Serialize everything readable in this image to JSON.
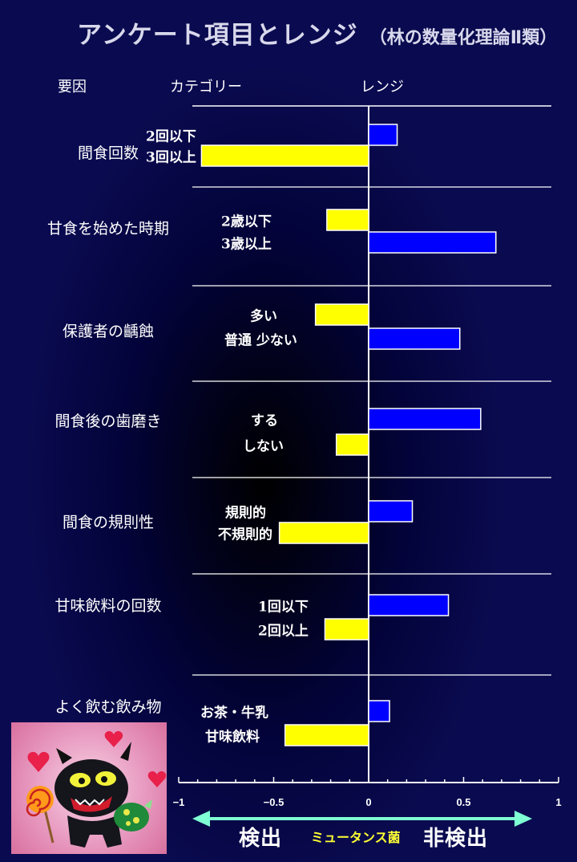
{
  "title": "アンケート項目とレンジ",
  "subtitle": "（林の数量化理論Ⅱ類）",
  "headers": {
    "factor": "要因",
    "category": "カテゴリー",
    "range": "レンジ"
  },
  "colors": {
    "background": "#0a0a4a",
    "positive": "#0000ff",
    "negative": "#ffff00",
    "arrow": "#7fffd4",
    "bacteria_label": "#ffff33"
  },
  "chart_data": {
    "type": "bar",
    "orientation": "horizontal",
    "xlim": [
      -1,
      1
    ],
    "xticks": [
      -1,
      -0.5,
      0,
      0.5,
      1
    ],
    "xtick_labels": [
      "−1",
      "−0.5",
      "0",
      "0.5",
      "1"
    ],
    "groups": [
      {
        "factor": "間食回数",
        "categories": [
          {
            "label": "2回以下",
            "value": 0.15
          },
          {
            "label": "3回以上",
            "value": -0.88
          }
        ]
      },
      {
        "factor": "甘食を始めた時期",
        "categories": [
          {
            "label": "2歳以下",
            "value": -0.22
          },
          {
            "label": "3歳以上",
            "value": 0.67
          }
        ]
      },
      {
        "factor": "保護者の齲蝕",
        "categories": [
          {
            "label": "多い",
            "value": -0.28
          },
          {
            "label": "普通  少ない",
            "value": 0.48
          }
        ]
      },
      {
        "factor": "間食後の歯磨き",
        "categories": [
          {
            "label": "する",
            "value": 0.59
          },
          {
            "label": "しない",
            "value": -0.17
          }
        ]
      },
      {
        "factor": "間食の規則性",
        "categories": [
          {
            "label": "規則的",
            "value": 0.23
          },
          {
            "label": "不規則的",
            "value": -0.47
          }
        ]
      },
      {
        "factor": "甘味飲料の回数",
        "categories": [
          {
            "label": "1回以下",
            "value": 0.42
          },
          {
            "label": "2回以上",
            "value": -0.23
          }
        ]
      },
      {
        "factor": "よく飲む飲み物",
        "categories": [
          {
            "label": "お茶・牛乳",
            "value": 0.11
          },
          {
            "label": "甘味飲料",
            "value": -0.44
          }
        ]
      }
    ]
  },
  "axis_legend": {
    "left": "検出",
    "middle": "ミュータンス菌",
    "right": "非検出"
  },
  "illustration": {
    "icon": "devil-mascot-with-lollipop"
  }
}
